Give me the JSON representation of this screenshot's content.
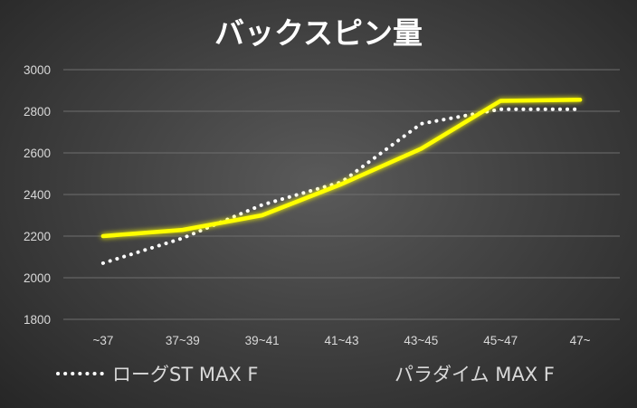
{
  "chart_data": {
    "type": "line",
    "title": "バックスピン量",
    "categories": [
      "~37",
      "37~39",
      "39~41",
      "41~43",
      "43~45",
      "45~47",
      "47~"
    ],
    "ylim": [
      1800,
      3000
    ],
    "yticks": [
      1800,
      2000,
      2200,
      2400,
      2600,
      2800,
      3000
    ],
    "grid": true,
    "legend_position": "bottom",
    "series": [
      {
        "name": "ローグST MAX F",
        "style": "dotted",
        "color": "#ffffff",
        "values": [
          2070,
          2190,
          2350,
          2460,
          2740,
          2810,
          2810
        ]
      },
      {
        "name": "パラダイム MAX F",
        "style": "solid",
        "color": "#ffff00",
        "values": [
          2200,
          2230,
          2300,
          2450,
          2620,
          2850,
          2855
        ]
      }
    ]
  },
  "colors": {
    "background": "#3d3d3d",
    "gridline": "#6e6e6e",
    "text": "#d9d9d9",
    "title": "#ffffff"
  }
}
